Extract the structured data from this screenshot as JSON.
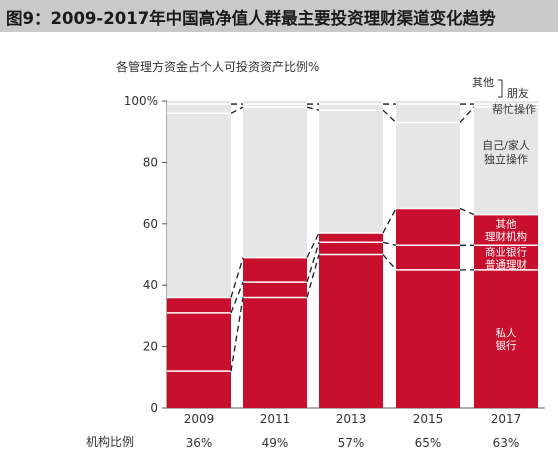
{
  "title": "图9：2009-2017年中国高净值人群最主要投资理财渠道变化趋势",
  "colors": {
    "institution": "#c8102e",
    "self": "#e6e6e6",
    "divider_light": "#ffffff",
    "text": "#333333"
  },
  "chart_data": {
    "type": "bar",
    "stacked": true,
    "title": "",
    "ylabel": "各管理方资金占个人可投资资产比例%",
    "ylim": [
      0,
      100
    ],
    "y_ticks": [
      "0",
      "20",
      "40",
      "60",
      "80",
      "100%"
    ],
    "categories": [
      "2009",
      "2011",
      "2013",
      "2015",
      "2017"
    ],
    "series": [
      {
        "name": "私人银行",
        "color": "#c8102e",
        "values": [
          12,
          36,
          50,
          45,
          45
        ]
      },
      {
        "name": "商业银行普通理财",
        "color": "#c8102e",
        "values": [
          19,
          5,
          4,
          8,
          8
        ]
      },
      {
        "name": "其他理财机构",
        "color": "#c8102e",
        "values": [
          5,
          8,
          3,
          12,
          10
        ]
      },
      {
        "name": "自己/家人独立操作",
        "color": "#e6e6e6",
        "values": [
          60,
          49,
          40,
          28,
          35
        ]
      },
      {
        "name": "朋友帮忙操作",
        "color": "#e6e6e6",
        "values": [
          3,
          1,
          2,
          6,
          1
        ]
      },
      {
        "name": "其他",
        "color": "#e6e6e6",
        "values": [
          1,
          1,
          1,
          1,
          1
        ]
      }
    ],
    "row_label": "机构比例",
    "row_values": [
      "36%",
      "49%",
      "57%",
      "65%",
      "63%"
    ],
    "legend_position": "right (labels inside last bar)",
    "grid": false
  }
}
